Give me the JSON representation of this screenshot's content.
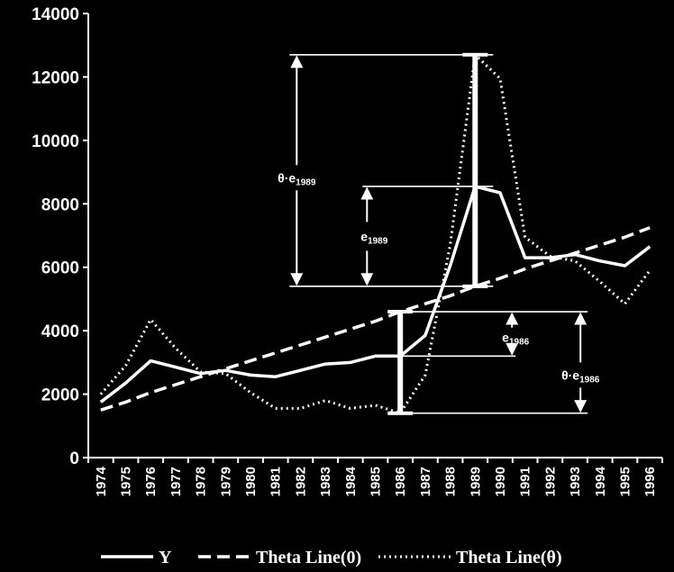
{
  "chart_data": {
    "type": "line",
    "title": "",
    "xlabel": "",
    "ylabel": "",
    "ylim": [
      0,
      14000
    ],
    "yticks": [
      0,
      2000,
      4000,
      6000,
      8000,
      10000,
      12000,
      14000
    ],
    "ytick_labels": [
      "0",
      "2000",
      "4000",
      "6000",
      "8000",
      "10000",
      "12000",
      "14000"
    ],
    "x": [
      "1974",
      "1975",
      "1976",
      "1977",
      "1978",
      "1979",
      "1980",
      "1981",
      "1982",
      "1983",
      "1984",
      "1985",
      "1986",
      "1987",
      "1988",
      "1989",
      "1990",
      "1991",
      "1992",
      "1993",
      "1994",
      "1995",
      "1996"
    ],
    "grid": false,
    "legend_position": "bottom",
    "series": [
      {
        "name": "Y",
        "style": "solid",
        "values": [
          1750,
          2350,
          3050,
          2850,
          2650,
          2750,
          2600,
          2550,
          2750,
          2950,
          3000,
          3200,
          3200,
          3850,
          6050,
          8550,
          8350,
          6300,
          6300,
          6400,
          6200,
          6050,
          6650
        ]
      },
      {
        "name": "Theta Line(0)",
        "style": "dashed",
        "values": [
          1500,
          1750,
          2050,
          2300,
          2550,
          2800,
          3050,
          3300,
          3550,
          3800,
          4050,
          4300,
          4600,
          4850,
          5100,
          5400,
          5650,
          5950,
          6200,
          6450,
          6700,
          6950,
          7250
        ]
      },
      {
        "name": "Theta Line(θ)",
        "style": "dotted",
        "values": [
          2000,
          2900,
          4350,
          3450,
          2700,
          2650,
          2050,
          1550,
          1550,
          1800,
          1550,
          1650,
          1400,
          2600,
          6700,
          12700,
          11950,
          6950,
          6350,
          6200,
          5550,
          4850,
          5900
        ]
      }
    ],
    "annotations": {
      "ann_1989_theta": {
        "base": "θ·e",
        "sub": "1989"
      },
      "ann_1989_e": {
        "base": "e",
        "sub": "1989"
      },
      "ann_1986_e": {
        "base": "e",
        "sub": "1986"
      },
      "ann_1986_theta": {
        "base": "θ·e",
        "sub": "1986"
      }
    },
    "colors": {
      "background": "#000000",
      "foreground": "#ffffff"
    }
  }
}
